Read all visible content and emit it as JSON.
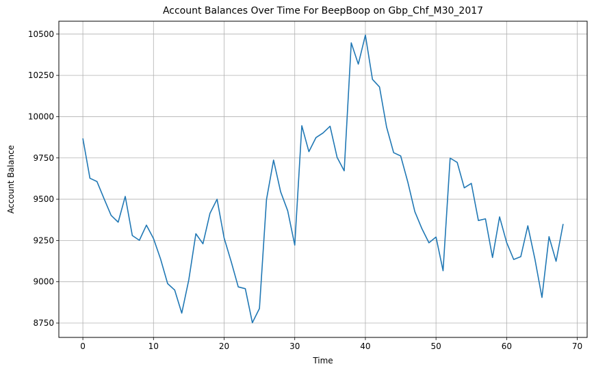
{
  "chart_data": {
    "type": "line",
    "title": "Account Balances Over Time For BeepBoop on Gbp_Chf_M30_2017",
    "xlabel": "Time",
    "ylabel": "Account Balance",
    "xlim": [
      -3.4,
      71.4
    ],
    "ylim": [
      8663,
      10578
    ],
    "xticks": [
      0,
      10,
      20,
      30,
      40,
      50,
      60,
      70
    ],
    "yticks": [
      8750,
      9000,
      9250,
      9500,
      9750,
      10000,
      10250,
      10500
    ],
    "grid": true,
    "line_color": "#1f77b4",
    "series": [
      {
        "x": [
          0,
          1,
          2,
          3,
          4,
          5,
          6,
          7,
          8,
          9,
          10,
          11,
          12,
          13,
          14,
          15,
          16,
          17,
          18,
          19,
          20,
          21,
          22,
          23,
          24,
          25,
          26,
          27,
          28,
          29,
          30,
          31,
          32,
          33,
          34,
          35,
          36,
          37,
          38,
          39,
          40,
          41,
          42,
          43,
          44,
          45,
          46,
          47,
          48,
          49,
          50,
          51,
          52,
          53,
          54,
          55,
          56,
          57,
          58,
          59,
          60,
          61,
          62,
          63,
          64,
          65,
          66,
          67,
          68
        ],
        "values": [
          9868,
          9627,
          9607,
          9503,
          9402,
          9361,
          9517,
          9280,
          9251,
          9343,
          9262,
          9138,
          8989,
          8950,
          8810,
          9012,
          9291,
          9230,
          9415,
          9500,
          9265,
          9122,
          8969,
          8958,
          8752,
          8838,
          9498,
          9737,
          9545,
          9430,
          9222,
          9945,
          9788,
          9873,
          9901,
          9942,
          9753,
          9672,
          10447,
          10318,
          10494,
          10226,
          10180,
          9937,
          9782,
          9762,
          9605,
          9425,
          9322,
          9236,
          9271,
          9067,
          9749,
          9723,
          9569,
          9596,
          9371,
          9381,
          9147,
          9393,
          9238,
          9135,
          9152,
          9339,
          9138,
          8905,
          9273,
          9124,
          9350
        ]
      }
    ]
  }
}
